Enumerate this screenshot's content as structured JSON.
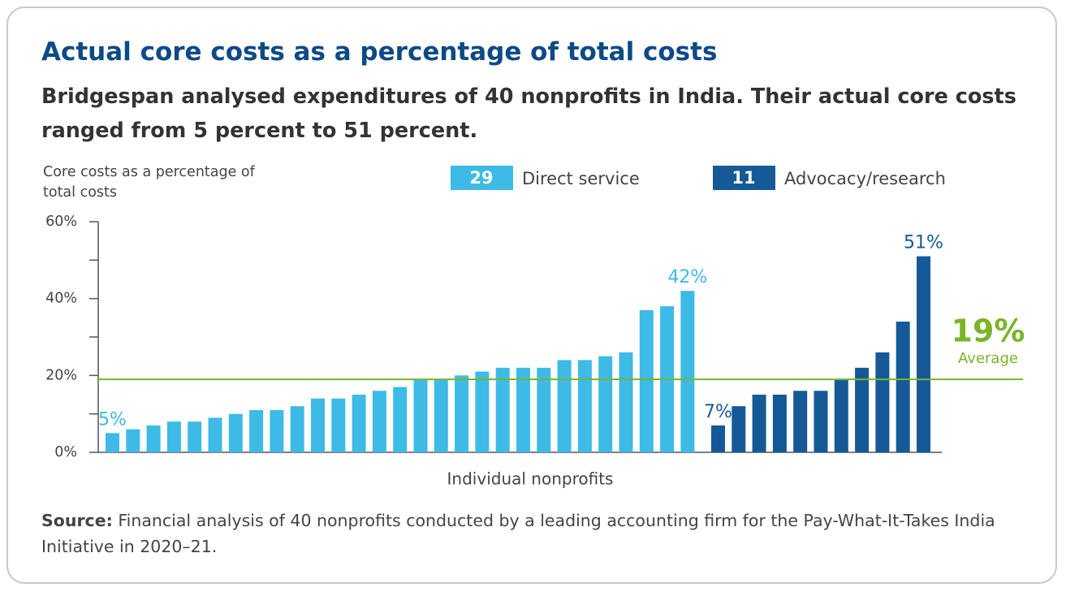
{
  "chart_data": {
    "type": "bar",
    "title": "Actual core costs as a percentage of total costs",
    "subtitle": "Bridgespan analysed expenditures of 40 nonprofits in India. Their actual core costs ranged from 5 percent to 51 percent.",
    "y_label": "Core costs as a percentage of total costs",
    "x_label": "Individual nonprofits",
    "ylim": [
      0,
      60
    ],
    "yticks": [
      {
        "value": 0,
        "label": "0%"
      },
      {
        "value": 20,
        "label": "20%"
      },
      {
        "value": 40,
        "label": "40%"
      },
      {
        "value": 60,
        "label": "60%"
      }
    ],
    "minor_yticks": [
      10,
      30,
      50
    ],
    "series": [
      {
        "name": "Direct service",
        "count": 29,
        "color": "#3dbbe6",
        "values": [
          5,
          6,
          7,
          8,
          8,
          9,
          10,
          11,
          11,
          12,
          14,
          14,
          15,
          16,
          17,
          19,
          19,
          20,
          21,
          22,
          22,
          22,
          24,
          24,
          25,
          26,
          37,
          38,
          42
        ],
        "value_labels": [
          "5%",
          null,
          null,
          null,
          null,
          null,
          null,
          null,
          null,
          null,
          null,
          null,
          null,
          null,
          null,
          null,
          null,
          null,
          null,
          null,
          null,
          null,
          null,
          null,
          null,
          null,
          null,
          null,
          "42%"
        ]
      },
      {
        "name": "Advocacy/research",
        "count": 11,
        "color": "#155a96",
        "values": [
          7,
          12,
          15,
          15,
          16,
          16,
          19,
          22,
          26,
          34,
          51
        ],
        "value_labels": [
          "7%",
          null,
          null,
          null,
          null,
          null,
          null,
          null,
          null,
          null,
          "51%"
        ]
      }
    ],
    "average": {
      "value": 19,
      "label": "19%",
      "text": "Average",
      "color": "#7ab42a"
    },
    "source_label": "Source:",
    "source": "Financial analysis of 40 nonprofits conducted by a leading accounting firm for the Pay-What-It-Takes India Initiative in 2020–21."
  }
}
